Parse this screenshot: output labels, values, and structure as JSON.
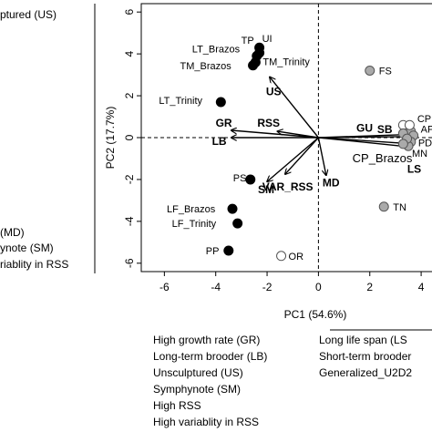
{
  "chart_data": {
    "type": "scatter",
    "xlabel": "PC1 (54.6%)",
    "ylabel": "PC2 (17.7%)",
    "xlim": [
      -6.9,
      4.6
    ],
    "ylim": [
      -6.4,
      6.4
    ],
    "xticks": [
      -6,
      -4,
      -2,
      0,
      2,
      4
    ],
    "yticks": [
      -6,
      -4,
      -2,
      0,
      2,
      4,
      6
    ],
    "points": [
      {
        "label": "TP",
        "x": -2.3,
        "y": 4.3,
        "fill": "#000000"
      },
      {
        "label": "UI",
        "x": -2.3,
        "y": 4.05,
        "fill": "#000000"
      },
      {
        "label": "LT_Brazos",
        "x": -2.4,
        "y": 3.9,
        "fill": "#000000"
      },
      {
        "label": "TM_Trinity",
        "x": -2.45,
        "y": 3.6,
        "fill": "#000000"
      },
      {
        "label": "TM_Brazos",
        "x": -2.55,
        "y": 3.45,
        "fill": "#000000"
      },
      {
        "label": "LT_Trinity",
        "x": -3.8,
        "y": 1.7,
        "fill": "#000000"
      },
      {
        "label": "PS",
        "x": -2.65,
        "y": -2.0,
        "fill": "#000000"
      },
      {
        "label": "LF_Brazos",
        "x": -3.35,
        "y": -3.4,
        "fill": "#000000"
      },
      {
        "label": "LF_Trinity",
        "x": -3.15,
        "y": -4.1,
        "fill": "#000000"
      },
      {
        "label": "PP",
        "x": -3.5,
        "y": -5.4,
        "fill": "#000000"
      },
      {
        "label": "OR",
        "x": -1.45,
        "y": -5.65,
        "fill": "#ffffff"
      },
      {
        "label": "FS",
        "x": 2.0,
        "y": 3.2,
        "fill": "#aaaaaa"
      },
      {
        "label": "TN",
        "x": 2.55,
        "y": -3.3,
        "fill": "#aaaaaa"
      },
      {
        "label": "CP",
        "x": 3.6,
        "y": 0.3,
        "fill": "#aaaaaa"
      },
      {
        "label": "AP",
        "x": 3.7,
        "y": 0.1,
        "fill": "#aaaaaa"
      },
      {
        "label": "PD",
        "x": 3.6,
        "y": -0.2,
        "fill": "#aaaaaa"
      },
      {
        "label": "MN",
        "x": 3.5,
        "y": -0.4,
        "fill": "#aaaaaa"
      },
      {
        "label": "",
        "x": 3.3,
        "y": 0.6,
        "fill": "#ffffff"
      },
      {
        "label": "",
        "x": 3.55,
        "y": 0.6,
        "fill": "#ffffff"
      },
      {
        "label": "",
        "x": 3.3,
        "y": 0.2,
        "fill": "#aaaaaa"
      },
      {
        "label": "",
        "x": 3.45,
        "y": -0.05,
        "fill": "#aaaaaa"
      },
      {
        "label": "",
        "x": 3.3,
        "y": -0.3,
        "fill": "#aaaaaa"
      }
    ],
    "loadings": [
      {
        "label": "US",
        "x": -1.9,
        "y": 2.9
      },
      {
        "label": "RSS",
        "x": -1.6,
        "y": 0.3
      },
      {
        "label": "GR",
        "x": -3.4,
        "y": 0.35
      },
      {
        "label": "LB",
        "x": -3.4,
        "y": 0.0
      },
      {
        "label": "SM",
        "x": -2.0,
        "y": -2.1
      },
      {
        "label": "VAR_RSS",
        "x": -1.3,
        "y": -1.75
      },
      {
        "label": "MD",
        "x": 0.3,
        "y": -1.8
      },
      {
        "label": "GU",
        "x": 3.5,
        "y": 0.15
      },
      {
        "label": "SB",
        "x": 3.6,
        "y": 0.05
      },
      {
        "label": "CP_Brazos",
        "x": 3.7,
        "y": -0.3
      },
      {
        "label": "LS",
        "x": 3.6,
        "y": -0.45
      }
    ],
    "left_legend": [
      "ptured (US)",
      "(MD)",
      "ynote (SM)",
      "riablity in RSS"
    ],
    "legend_col1": [
      "High growth rate (GR)",
      "Long-term brooder (LB)",
      "Unsculptured (US)",
      "Symphynote (SM)",
      "High RSS",
      "High variablity in RSS"
    ],
    "legend_col2": [
      "Long life span (LS",
      "Short-term brooder",
      "Generalized_U2D2"
    ]
  }
}
